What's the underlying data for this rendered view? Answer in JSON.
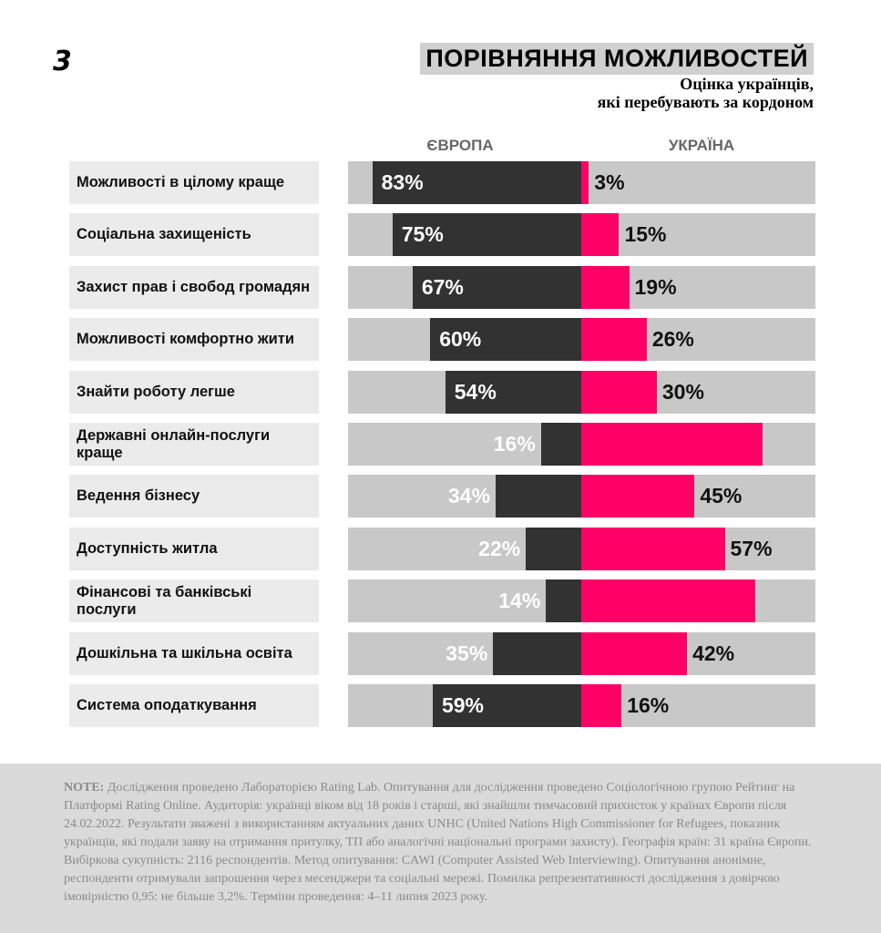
{
  "logo": "3",
  "chart_data": {
    "type": "diverging-bar",
    "title": "ПОРІВНЯННЯ МОЖЛИВОСТЕЙ",
    "subtitle": [
      "Оцінка українців,",
      "які перебувають за кордоном"
    ],
    "categories": [
      "Можливості в цілому краще",
      "Соціальна захищеність",
      "Захист прав і свобод громадян",
      "Можливості комфортно жити",
      "Знайти роботу легше",
      "Державні онлайн-послуги краще",
      "Ведення бізнесу",
      "Доступність житла",
      "Фінансові та банківські послуги",
      "Дошкільна та шкільна освіта",
      "Система оподаткування"
    ],
    "xlim": [
      0,
      93
    ],
    "series": [
      {
        "name": "ЄВРОПА",
        "color": "#323232",
        "values": [
          83,
          75,
          67,
          60,
          54,
          16,
          34,
          22,
          14,
          35,
          59
        ],
        "value_labels": [
          "83%",
          "75%",
          "67%",
          "60%",
          "54%",
          "16%",
          "34%",
          "22%",
          "14%",
          "35%",
          "59%"
        ]
      },
      {
        "name": "УКРАЇНА",
        "color": "#ff0066",
        "values": [
          3,
          15,
          19,
          26,
          30,
          72,
          45,
          57,
          69,
          42,
          16
        ],
        "value_labels": [
          "3%",
          "15%",
          "19%",
          "26%",
          "30%",
          null,
          "45%",
          "57%",
          null,
          "42%",
          "16%"
        ]
      }
    ]
  },
  "note": {
    "label": "NOTE:",
    "text": "Дослідження проведено Лабораторією Rating Lab. Опитування для дослідження проведено Соціологічною групою Рейтинг на Платформі Rating Online. Аудиторія: українці віком від 18 років і старші, які знайшли тимчасовий прихисток у країнах Європи після 24.02.2022. Результати зважені з використанням актуальних даних UNHC (United Nations High Commissioner for Refugees, показник українців, які подали заяву на отримання притулку, ТП або аналогічні національні програми захисту). Географія країн: 31 країна Європи. Вибіркова сукупність: 2116 респондентів. Метод опитування: CAWI (Computer Assisted Web Interviewing). Опитування анонімне, респонденти отримували запрошення через месенджери та соціальні мережі. Помилка репрезентативності дослідження з довірчою імовірністю 0,95: не більше 3,2%. Терміни проведення: 4–11 липня 2023 року."
  }
}
